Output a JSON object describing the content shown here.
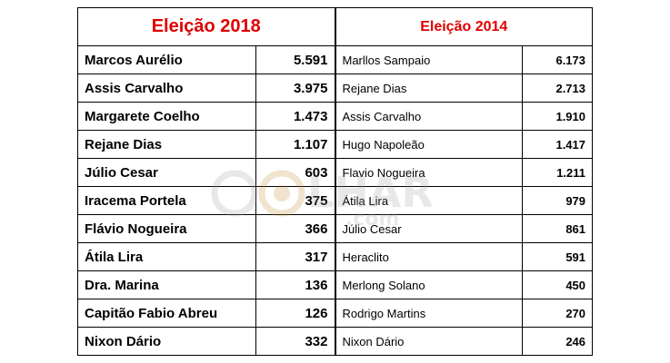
{
  "table": {
    "header_2018": "Eleição 2018",
    "header_2014": "Eleição 2014",
    "rows": [
      {
        "name_2018": "Marcos Aurélio",
        "votes_2018": "5.591",
        "name_2014": "Marllos Sampaio",
        "votes_2014": "6.173"
      },
      {
        "name_2018": "Assis Carvalho",
        "votes_2018": "3.975",
        "name_2014": "Rejane Dias",
        "votes_2014": "2.713"
      },
      {
        "name_2018": "Margarete Coelho",
        "votes_2018": "1.473",
        "name_2014": "Assis Carvalho",
        "votes_2014": "1.910"
      },
      {
        "name_2018": "Rejane Dias",
        "votes_2018": "1.107",
        "name_2014": "Hugo Napoleão",
        "votes_2014": "1.417"
      },
      {
        "name_2018": "Júlio Cesar",
        "votes_2018": "603",
        "name_2014": "Flavio Nogueira",
        "votes_2014": "1.211"
      },
      {
        "name_2018": "Iracema Portela",
        "votes_2018": "375",
        "name_2014": "Átila Lira",
        "votes_2014": "979"
      },
      {
        "name_2018": "Flávio Nogueira",
        "votes_2018": "366",
        "name_2014": "Júlio Cesar",
        "votes_2014": "861"
      },
      {
        "name_2018": "Átila Lira",
        "votes_2018": "317",
        "name_2014": "Heraclito",
        "votes_2014": "591"
      },
      {
        "name_2018": "Dra. Marina",
        "votes_2018": "136",
        "name_2014": "Merlong Solano",
        "votes_2014": "450"
      },
      {
        "name_2018": "Capitão Fabio Abreu",
        "votes_2018": "126",
        "name_2014": "Rodrigo Martins",
        "votes_2014": "270"
      },
      {
        "name_2018": "Nixon Dário",
        "votes_2018": "332",
        "name_2014": "Nixon Dário",
        "votes_2014": "246"
      }
    ]
  },
  "watermark": {
    "brand": "OOLHAR",
    "domain": ".com"
  },
  "colors": {
    "header_red": "#e00000"
  }
}
